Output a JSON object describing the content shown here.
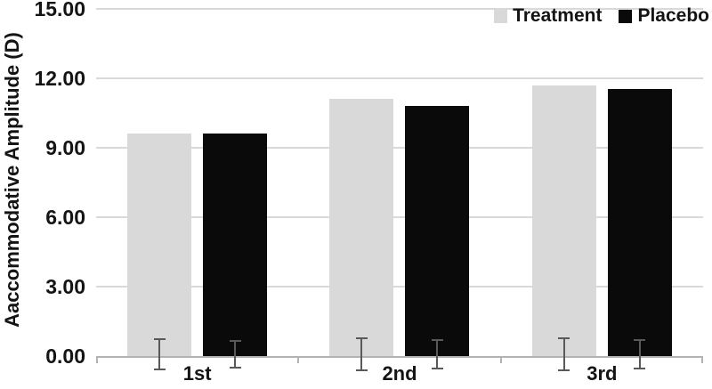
{
  "chart_data": {
    "type": "bar",
    "title": "",
    "xlabel": "",
    "ylabel": "Aaccommodative Amplitude (D)",
    "categories": [
      "1st",
      "2nd",
      "3rd"
    ],
    "series": [
      {
        "name": "Treatment",
        "color": "#d9d9d9",
        "values": [
          9.6,
          11.1,
          11.7
        ],
        "errors": [
          0.63,
          0.65,
          0.65
        ]
      },
      {
        "name": "Placebo",
        "color": "#0a0a0a",
        "values": [
          9.6,
          10.8,
          11.55
        ],
        "errors": [
          0.55,
          0.57,
          0.58
        ]
      }
    ],
    "ylim": [
      0,
      15
    ],
    "ytick_values": [
      0,
      3,
      6,
      9,
      12,
      15
    ],
    "ytick_labels": [
      "0.00",
      "3.00",
      "6.00",
      "9.00",
      "12.00",
      "15.00"
    ],
    "grid": true,
    "legend_position": "top-right",
    "colors": {
      "gridline": "#d9d9d9",
      "axis_line": "#b3b3b3",
      "error_bar": "#595959",
      "text": "#141414",
      "background": "#ffffff"
    }
  }
}
